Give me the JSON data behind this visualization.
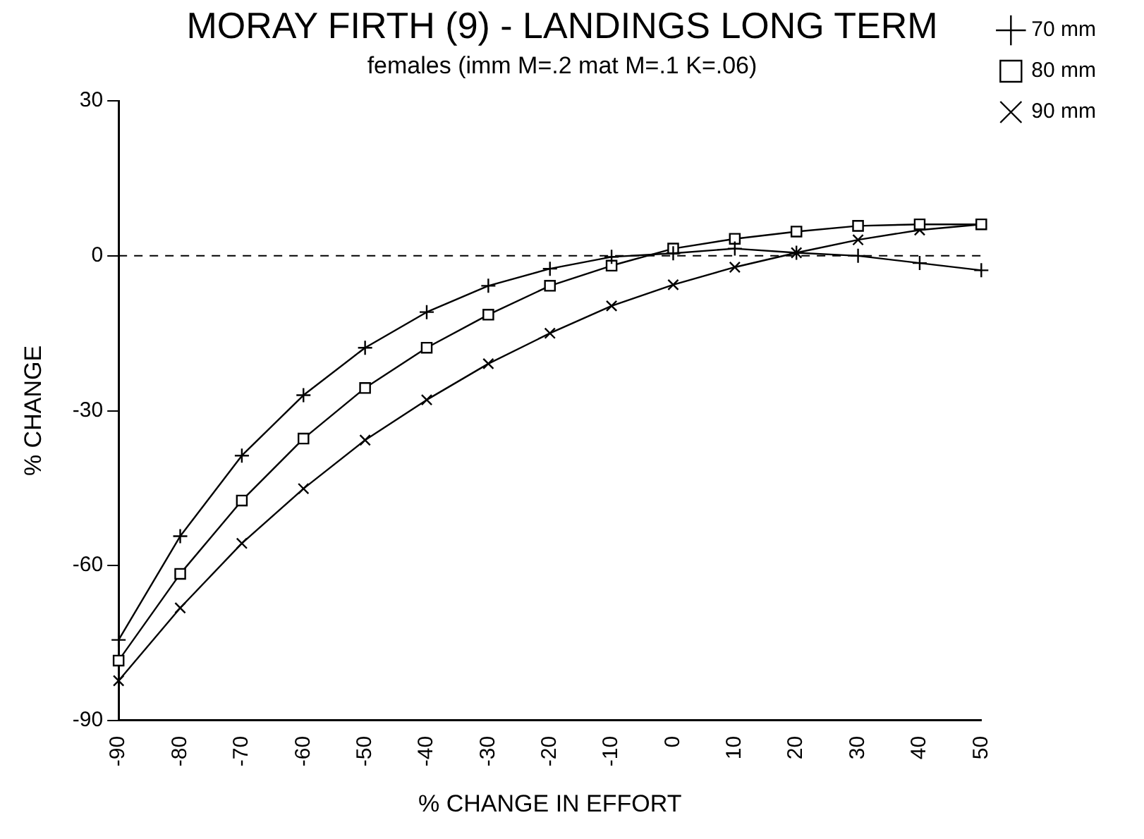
{
  "chart_data": {
    "type": "line",
    "title": "MORAY FIRTH (9) - LANDINGS LONG TERM",
    "subtitle": "females (imm M=.2 mat M=.1 K=.06)",
    "xlabel": "% CHANGE IN EFFORT",
    "ylabel": "% CHANGE",
    "x": [
      -90,
      -80,
      -70,
      -60,
      -50,
      -40,
      -30,
      -20,
      -10,
      0,
      10,
      20,
      30,
      40,
      50
    ],
    "series": [
      {
        "name": "70 mm",
        "color": "#000000",
        "marker": "cross",
        "values": [
          -74.4,
          -54.3,
          -38.7,
          -27,
          -17.8,
          -10.9,
          -5.8,
          -2.5,
          -0.2,
          0.5,
          1.4,
          0.6,
          0,
          -1.4,
          -2.8
        ]
      },
      {
        "name": "80 mm",
        "color": "#000000",
        "marker": "square",
        "values": [
          -78.4,
          -61.6,
          -47.4,
          -35.4,
          -25.6,
          -17.8,
          -11.4,
          -5.8,
          -1.9,
          1.4,
          3.3,
          4.7,
          5.8,
          6.1,
          6.1
        ]
      },
      {
        "name": "90 mm",
        "color": "#000000",
        "marker": "x",
        "values": [
          -82.3,
          -68.2,
          -55.7,
          -45.1,
          -35.7,
          -27.9,
          -20.9,
          -15,
          -9.7,
          -5.6,
          -2.2,
          0.6,
          3.1,
          5,
          6.1
        ]
      }
    ],
    "xlim": [
      -90,
      50
    ],
    "xticks": [
      -90,
      -80,
      -70,
      -60,
      -50,
      -40,
      -30,
      -20,
      -10,
      0,
      10,
      20,
      30,
      40,
      50
    ],
    "ylim": [
      -90,
      30
    ],
    "yticks": [
      -90,
      -60,
      -30,
      0,
      30
    ],
    "ref_lines": [
      {
        "axis": "y",
        "value": 0,
        "line_style": "dashed"
      }
    ],
    "grid": false,
    "legend": "top right",
    "line_style": "solid"
  }
}
